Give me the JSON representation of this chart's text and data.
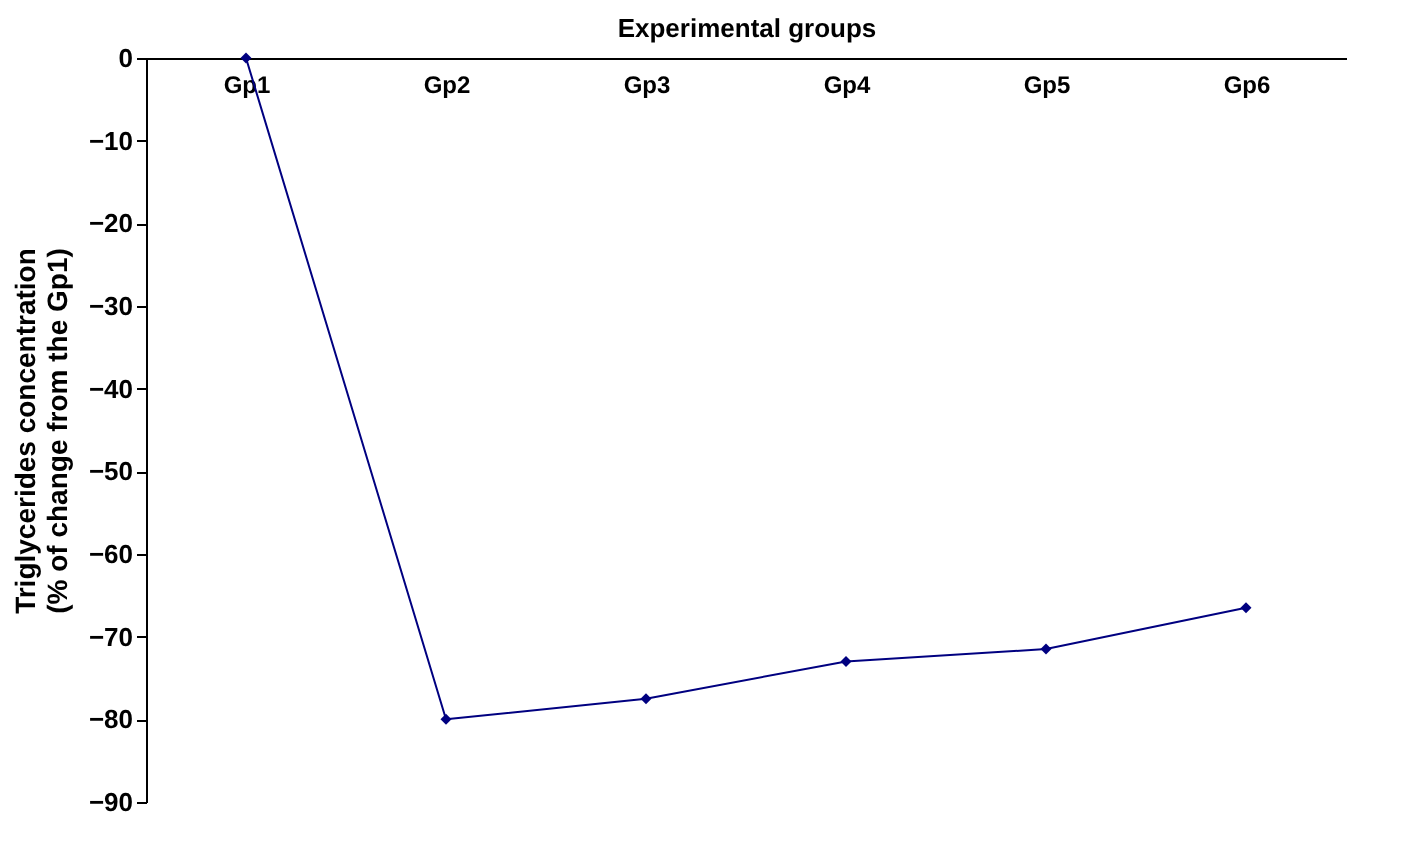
{
  "chart_data": {
    "type": "line",
    "xlabel": "Experimental groups",
    "ylabel": "Triglycerides concentration\n(% of change from the Gp1)",
    "categories": [
      "Gp1",
      "Gp2",
      "Gp3",
      "Gp4",
      "Gp5",
      "Gp6"
    ],
    "series": [
      {
        "color": "#000080",
        "values": [
          0,
          -80,
          -77.5,
          -73,
          -71.5,
          -66.5
        ]
      }
    ],
    "ylim": [
      -90,
      0
    ],
    "yticks": [
      0,
      -10,
      -20,
      -30,
      -40,
      -50,
      -60,
      -70,
      -80,
      -90
    ],
    "grid": false,
    "marker": "diamond",
    "line_style": "solid"
  }
}
